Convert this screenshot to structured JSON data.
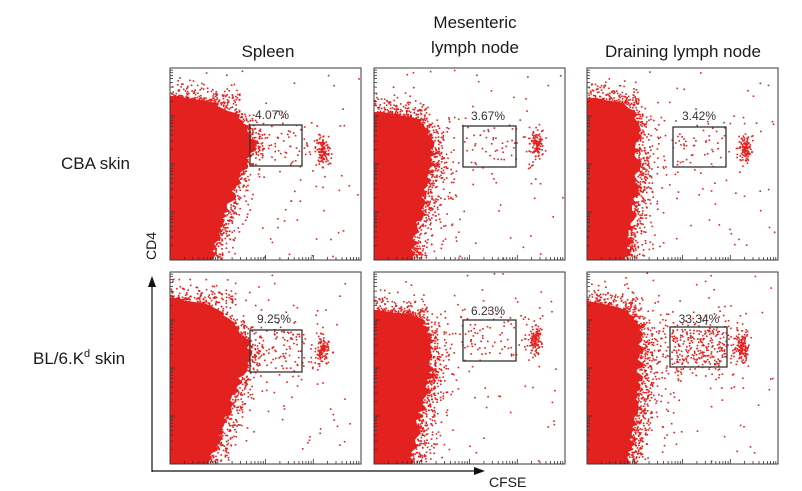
{
  "chart_data": {
    "type": "scatter",
    "xlabel": "CFSE",
    "ylabel": "CD4",
    "x_scale": "log",
    "y_scale": "log",
    "grid": false,
    "columns": [
      {
        "lines": [
          "Spleen"
        ]
      },
      {
        "lines": [
          "Mesenteric",
          "lymph node"
        ]
      },
      {
        "lines": [
          "Draining lymph node"
        ]
      }
    ],
    "rows": [
      {
        "text": "CBA skin"
      },
      {
        "text": "BL/6.K",
        "sup": "d",
        "suffix": " skin"
      }
    ],
    "panels": [
      {
        "row": 0,
        "column": 0,
        "gate_percent": 4.07,
        "gate_label": "4.07%"
      },
      {
        "row": 0,
        "column": 1,
        "gate_percent": 3.67,
        "gate_label": "3.67%"
      },
      {
        "row": 0,
        "column": 2,
        "gate_percent": 3.42,
        "gate_label": "3.42%"
      },
      {
        "row": 1,
        "column": 0,
        "gate_percent": 9.25,
        "gate_label": "9.25%"
      },
      {
        "row": 1,
        "column": 1,
        "gate_percent": 6.23,
        "gate_label": "6.23%"
      },
      {
        "row": 1,
        "column": 2,
        "gate_percent": 33.34,
        "gate_label": "33.34%"
      }
    ],
    "colors": {
      "events": "#e3211f",
      "frame": "#3a3a3a",
      "gate": "#333333",
      "text": "#1a1a1a"
    }
  }
}
